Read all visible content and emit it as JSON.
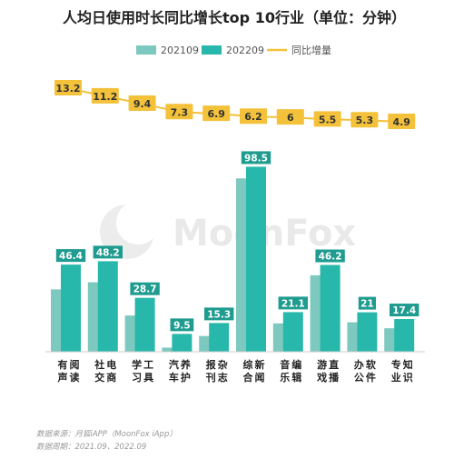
{
  "chart_data": {
    "type": "bar",
    "title": "人均日使用时长同比增长top 10行业（单位：分钟）",
    "categories": [
      "有声阅读",
      "社交电商",
      "学习工具",
      "汽车养护",
      "报刊杂志",
      "综合新闻",
      "音乐编辑",
      "游戏直播",
      "办公软件",
      "专业知识"
    ],
    "series": [
      {
        "name": "202109",
        "values": [
          33.2,
          37.0,
          19.3,
          2.2,
          8.4,
          92.3,
          15.1,
          40.7,
          15.7,
          12.5
        ],
        "color": "#7ec9bf"
      },
      {
        "name": "202209",
        "values": [
          46.4,
          48.2,
          28.7,
          9.5,
          15.3,
          98.5,
          21.1,
          46.2,
          21.0,
          17.4
        ],
        "color": "#27b8ab"
      },
      {
        "name": "同比增量",
        "type": "line",
        "values": [
          13.2,
          11.2,
          9.4,
          7.3,
          6.9,
          6.2,
          6.0,
          5.5,
          5.3,
          4.9
        ],
        "color": "#f3c13a"
      }
    ],
    "value_labels_series": "202209",
    "ylim": [
      0,
      105
    ],
    "grid": false,
    "legend_position": "top"
  },
  "watermark": "MoonFox",
  "footnotes": [
    "数据来源：月狐iAPP（MoonFox iApp）",
    "数据周期：2021.09、2022.09"
  ],
  "colors": {
    "bar_prev": "#7ec9bf",
    "bar_curr": "#27b8ab",
    "line": "#f3c13a",
    "label_bg": "#1f9c8f"
  }
}
